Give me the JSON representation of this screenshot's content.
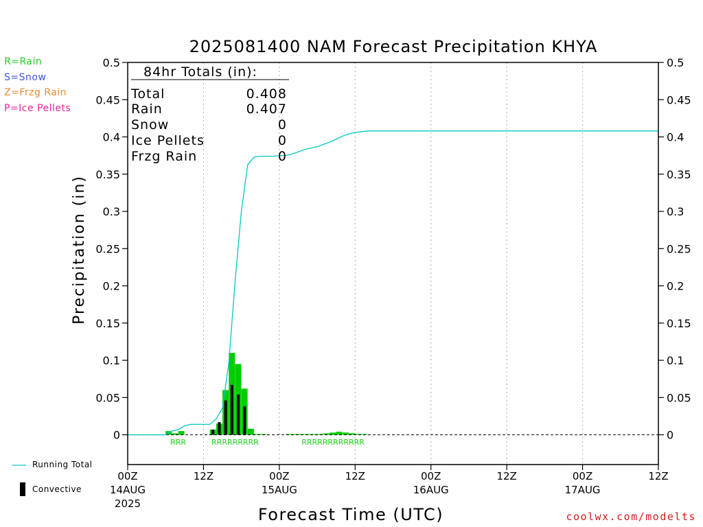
{
  "chart_data": {
    "type": "bar",
    "title": "2025081400 NAM Forecast Precipitation KHYA",
    "xlabel": "Forecast Time (UTC)",
    "ylabel": "Precipitation (in)",
    "ylim": [
      -0.04,
      0.5
    ],
    "xlim_hours": [
      0,
      84
    ],
    "y_ticks": [
      0,
      0.05,
      0.1,
      0.15,
      0.2,
      0.25,
      0.3,
      0.35,
      0.4,
      0.45,
      0.5
    ],
    "y_tick_labels": [
      "0",
      "0.05",
      "0.1",
      "0.15",
      "0.2",
      "0.25",
      "0.3",
      "0.35",
      "0.4",
      "0.45",
      "0.5"
    ],
    "x_ticks": [
      {
        "hour": 0,
        "label": "00Z",
        "sub": [
          "14AUG",
          "2025"
        ]
      },
      {
        "hour": 12,
        "label": "12Z",
        "sub": []
      },
      {
        "hour": 24,
        "label": "00Z",
        "sub": [
          "15AUG"
        ]
      },
      {
        "hour": 36,
        "label": "12Z",
        "sub": []
      },
      {
        "hour": 48,
        "label": "00Z",
        "sub": [
          "16AUG"
        ]
      },
      {
        "hour": 60,
        "label": "12Z",
        "sub": []
      },
      {
        "hour": 72,
        "label": "00Z",
        "sub": [
          "17AUG"
        ]
      },
      {
        "hour": 84,
        "label": "12Z",
        "sub": []
      }
    ],
    "grid": "vertical dotted at 12-hour intervals",
    "bar_width_hours": 1,
    "series": [
      {
        "name": "Rain",
        "color": "#00cc00",
        "hours": [
          7,
          8,
          9,
          14,
          15,
          16,
          17,
          18,
          19,
          20,
          21,
          22,
          26,
          27,
          28,
          29,
          30,
          31,
          32,
          33,
          34,
          35,
          36,
          37,
          38
        ],
        "values": [
          0.005,
          0.002,
          0.005,
          0.007,
          0.015,
          0.06,
          0.11,
          0.095,
          0.062,
          0.008,
          0.001,
          0.001,
          0.001,
          0.001,
          0.001,
          0.001,
          0.001,
          0.001,
          0.002,
          0.003,
          0.004,
          0.003,
          0.002,
          0.001,
          0.001
        ]
      },
      {
        "name": "Convective",
        "color": "#000000",
        "hours": [
          14,
          15,
          16,
          17,
          18,
          19
        ],
        "values": [
          0.007,
          0.017,
          0.046,
          0.067,
          0.054,
          0.038
        ]
      },
      {
        "name": "Running Total",
        "color": "#00c8c8",
        "type": "line",
        "hours": [
          0,
          6,
          7,
          8,
          9,
          10,
          11,
          12,
          13,
          14,
          15,
          16,
          17,
          18,
          19,
          20,
          21,
          22,
          23,
          24,
          25,
          26,
          27,
          28,
          29,
          30,
          31,
          32,
          33,
          34,
          35,
          36,
          37,
          38,
          39,
          84
        ],
        "values": [
          0,
          0,
          0.005,
          0.007,
          0.012,
          0.014,
          0.014,
          0.014,
          0.014,
          0.021,
          0.036,
          0.096,
          0.206,
          0.301,
          0.363,
          0.373,
          0.374,
          0.374,
          0.374,
          0.375,
          0.375,
          0.377,
          0.38,
          0.383,
          0.385,
          0.387,
          0.39,
          0.393,
          0.397,
          0.401,
          0.404,
          0.406,
          0.407,
          0.408,
          0.408,
          0.408
        ]
      }
    ],
    "ptype_markers": [
      {
        "text": "RRR",
        "hours": [
          7,
          9
        ]
      },
      {
        "text": "RRRRRRRRR",
        "hours": [
          13,
          21
        ]
      },
      {
        "text": "RRRRRRRRRRRR",
        "hours": [
          27,
          38
        ]
      }
    ],
    "totals_box": {
      "header": "84hr Totals (in):",
      "rows": [
        {
          "label": "Total",
          "value": "0.408"
        },
        {
          "label": "Rain",
          "value": "0.407"
        },
        {
          "label": "Snow",
          "value": "0"
        },
        {
          "label": "Ice Pellets",
          "value": "0"
        },
        {
          "label": "Frzg Rain",
          "value": "0"
        }
      ]
    }
  },
  "ptype_legend": [
    {
      "text": "R=Rain",
      "color": "#22cc22"
    },
    {
      "text": "S=Snow",
      "color": "#3a56e0"
    },
    {
      "text": "Z=Frzg Rain",
      "color": "#ee8833"
    },
    {
      "text": "P=Ice Pellets",
      "color": "#ee2299"
    }
  ],
  "legend": {
    "running_total": "Running Total",
    "convective": "Convective",
    "running_total_color": "#00c8c8",
    "convective_color": "#000000"
  },
  "credit": "coolwx.com/modelts"
}
